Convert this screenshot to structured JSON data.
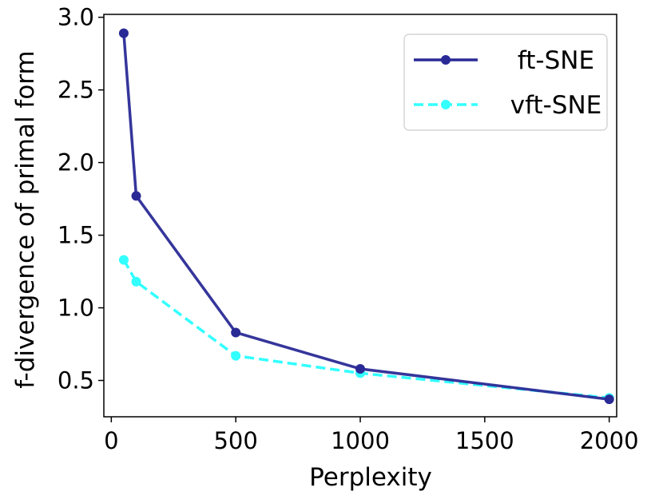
{
  "chart_data": {
    "type": "line",
    "xlabel": "Perplexity",
    "ylabel": "f-divergence of primal form",
    "xlim": [
      -30,
      2030
    ],
    "ylim": [
      0.25,
      3.02
    ],
    "xticks": [
      0,
      500,
      1000,
      1500,
      2000
    ],
    "xtick_labels": [
      "0",
      "500",
      "1000",
      "1500",
      "2000"
    ],
    "yticks": [
      0.5,
      1.0,
      1.5,
      2.0,
      2.5,
      3.0
    ],
    "ytick_labels": [
      "0.5",
      "1.0",
      "1.5",
      "2.0",
      "2.5",
      "3.0"
    ],
    "grid": false,
    "legend_position": "top-right",
    "x": [
      50,
      100,
      500,
      1000,
      2000
    ],
    "series": [
      {
        "name": "ft-SNE",
        "values": [
          2.89,
          1.77,
          0.83,
          0.58,
          0.37
        ],
        "color": "#2a2a96",
        "line_style": "solid"
      },
      {
        "name": "vft-SNE",
        "values": [
          1.33,
          1.18,
          0.67,
          0.55,
          0.38
        ],
        "color": "#33ffff",
        "line_style": "dashed"
      }
    ]
  }
}
